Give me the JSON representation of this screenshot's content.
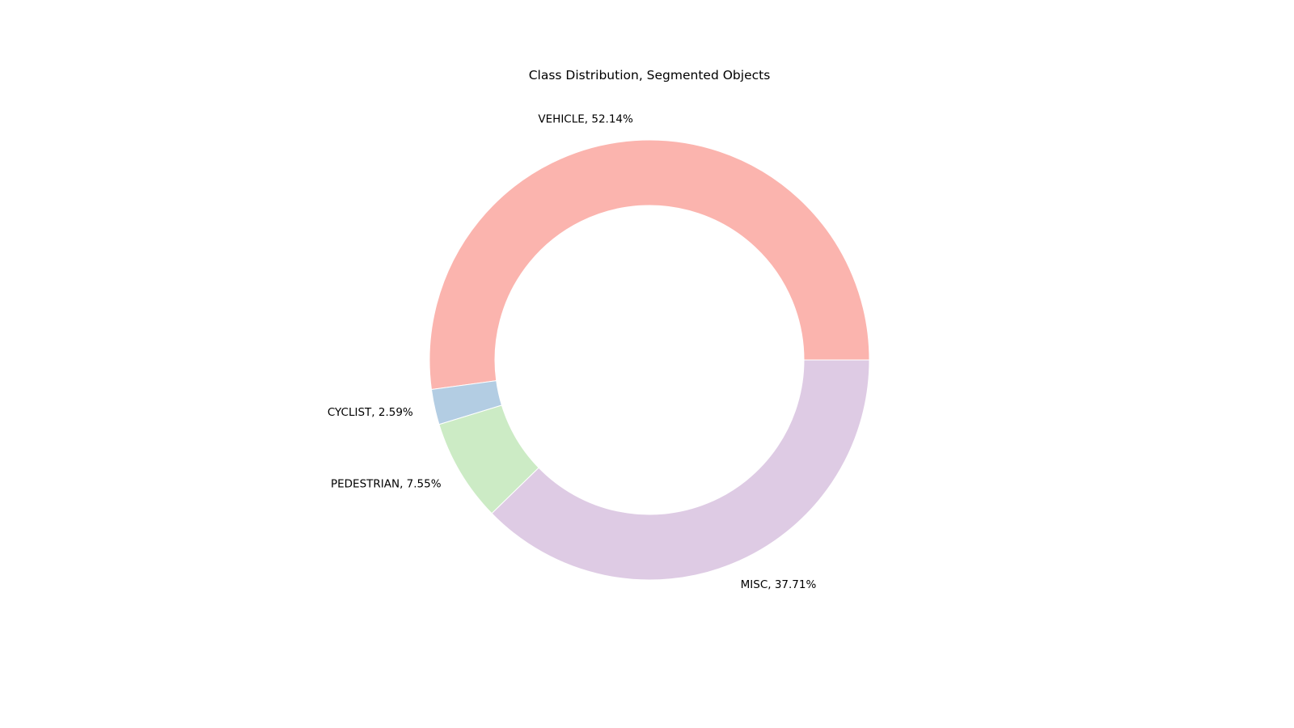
{
  "chart_data": {
    "type": "pie",
    "title": "Class Distribution, Segmented Objects",
    "donut": true,
    "start_angle_deg": 0,
    "direction": "counterclockwise",
    "slices": [
      {
        "label": "VEHICLE",
        "percent_text": "52.14%",
        "value": 52.14,
        "color": "#fbb4ae"
      },
      {
        "label": "CYCLIST",
        "percent_text": "2.59%",
        "value": 2.59,
        "color": "#b3cde3"
      },
      {
        "label": "PEDESTRIAN",
        "percent_text": "7.55%",
        "value": 7.55,
        "color": "#ccebc5"
      },
      {
        "label": "MISC",
        "percent_text": "37.71%",
        "value": 37.71,
        "color": "#decbe4"
      }
    ]
  }
}
